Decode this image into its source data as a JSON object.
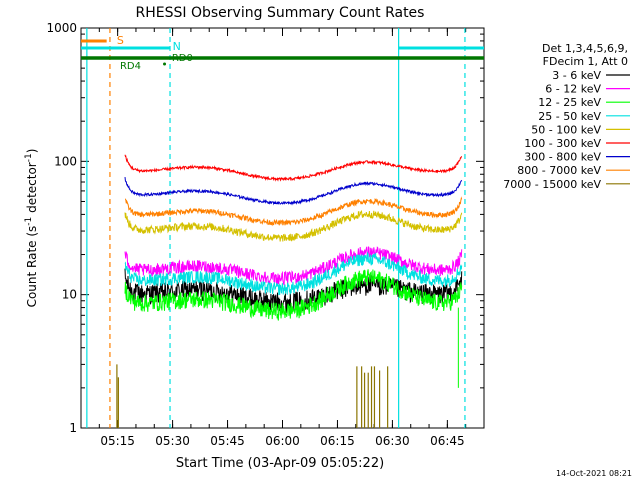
{
  "chart_data": {
    "type": "line",
    "title": "RHESSI Observing Summary Count Rates",
    "xlabel": "Start Time (03-Apr-09 05:05:22)",
    "ylabel": "Count Rate (s",
    "ylabel_sup": "-1",
    "ylabel_tail": " detector",
    "ylabel_end": ")",
    "y_scale": "log",
    "ylim": [
      1,
      1000
    ],
    "y_ticks": [
      1,
      10,
      100,
      1000
    ],
    "y_tick_labels": [
      "1",
      "10",
      "100",
      "1000"
    ],
    "xlim_minutes": [
      0,
      110
    ],
    "x_ticks": [
      {
        "t": 10,
        "label": "05:15"
      },
      {
        "t": 25,
        "label": "05:30"
      },
      {
        "t": 40,
        "label": "05:45"
      },
      {
        "t": 55,
        "label": "06:00"
      },
      {
        "t": 70,
        "label": "06:15"
      },
      {
        "t": 85,
        "label": "06:30"
      },
      {
        "t": 100,
        "label": "06:45"
      }
    ],
    "legend_header": [
      "Det 1,3,4,5,6,9,",
      "FDecim 1, Att 0"
    ],
    "series": [
      {
        "name": "3 - 6 keV",
        "color": "#000000",
        "base": 10.0,
        "bump": 1.2,
        "noise": 0.08
      },
      {
        "name": "6 - 12 keV",
        "color": "#ff00ff",
        "base": 15.0,
        "bump": 1.4,
        "noise": 0.05
      },
      {
        "name": "12 - 25 keV",
        "color": "#00ff00",
        "base": 8.5,
        "bump": 1.6,
        "noise": 0.07
      },
      {
        "name": "25 - 50 keV",
        "color": "#00e0e0",
        "base": 12.5,
        "bump": 1.5,
        "noise": 0.05
      },
      {
        "name": "50 - 100 keV",
        "color": "#d4c000",
        "base": 30.0,
        "bump": 1.35,
        "noise": 0.03
      },
      {
        "name": "100 - 300 keV",
        "color": "#ff0000",
        "base": 83.0,
        "bump": 1.2,
        "noise": 0.01
      },
      {
        "name": "300 - 800 keV",
        "color": "#0000cc",
        "base": 55.0,
        "bump": 1.25,
        "noise": 0.01
      },
      {
        "name": "800 - 7000 keV",
        "color": "#ff8000",
        "base": 39.0,
        "bump": 1.3,
        "noise": 0.02
      },
      {
        "name": "7000 - 15000 keV",
        "color": "#8b7500",
        "base": 1.0,
        "bump": 1.0,
        "noise": 0.0
      }
    ],
    "flags": [
      {
        "label": "S",
        "color": "#ff8000"
      },
      {
        "label": "N",
        "color": "#00e0e0"
      },
      {
        "label": "RD0",
        "color": "#007700"
      },
      {
        "label": "RD4",
        "color": "#007700"
      }
    ],
    "data_start_minute": 12,
    "data_end_minute": 104
  },
  "timestamp": "14-Oct-2021 08:21"
}
